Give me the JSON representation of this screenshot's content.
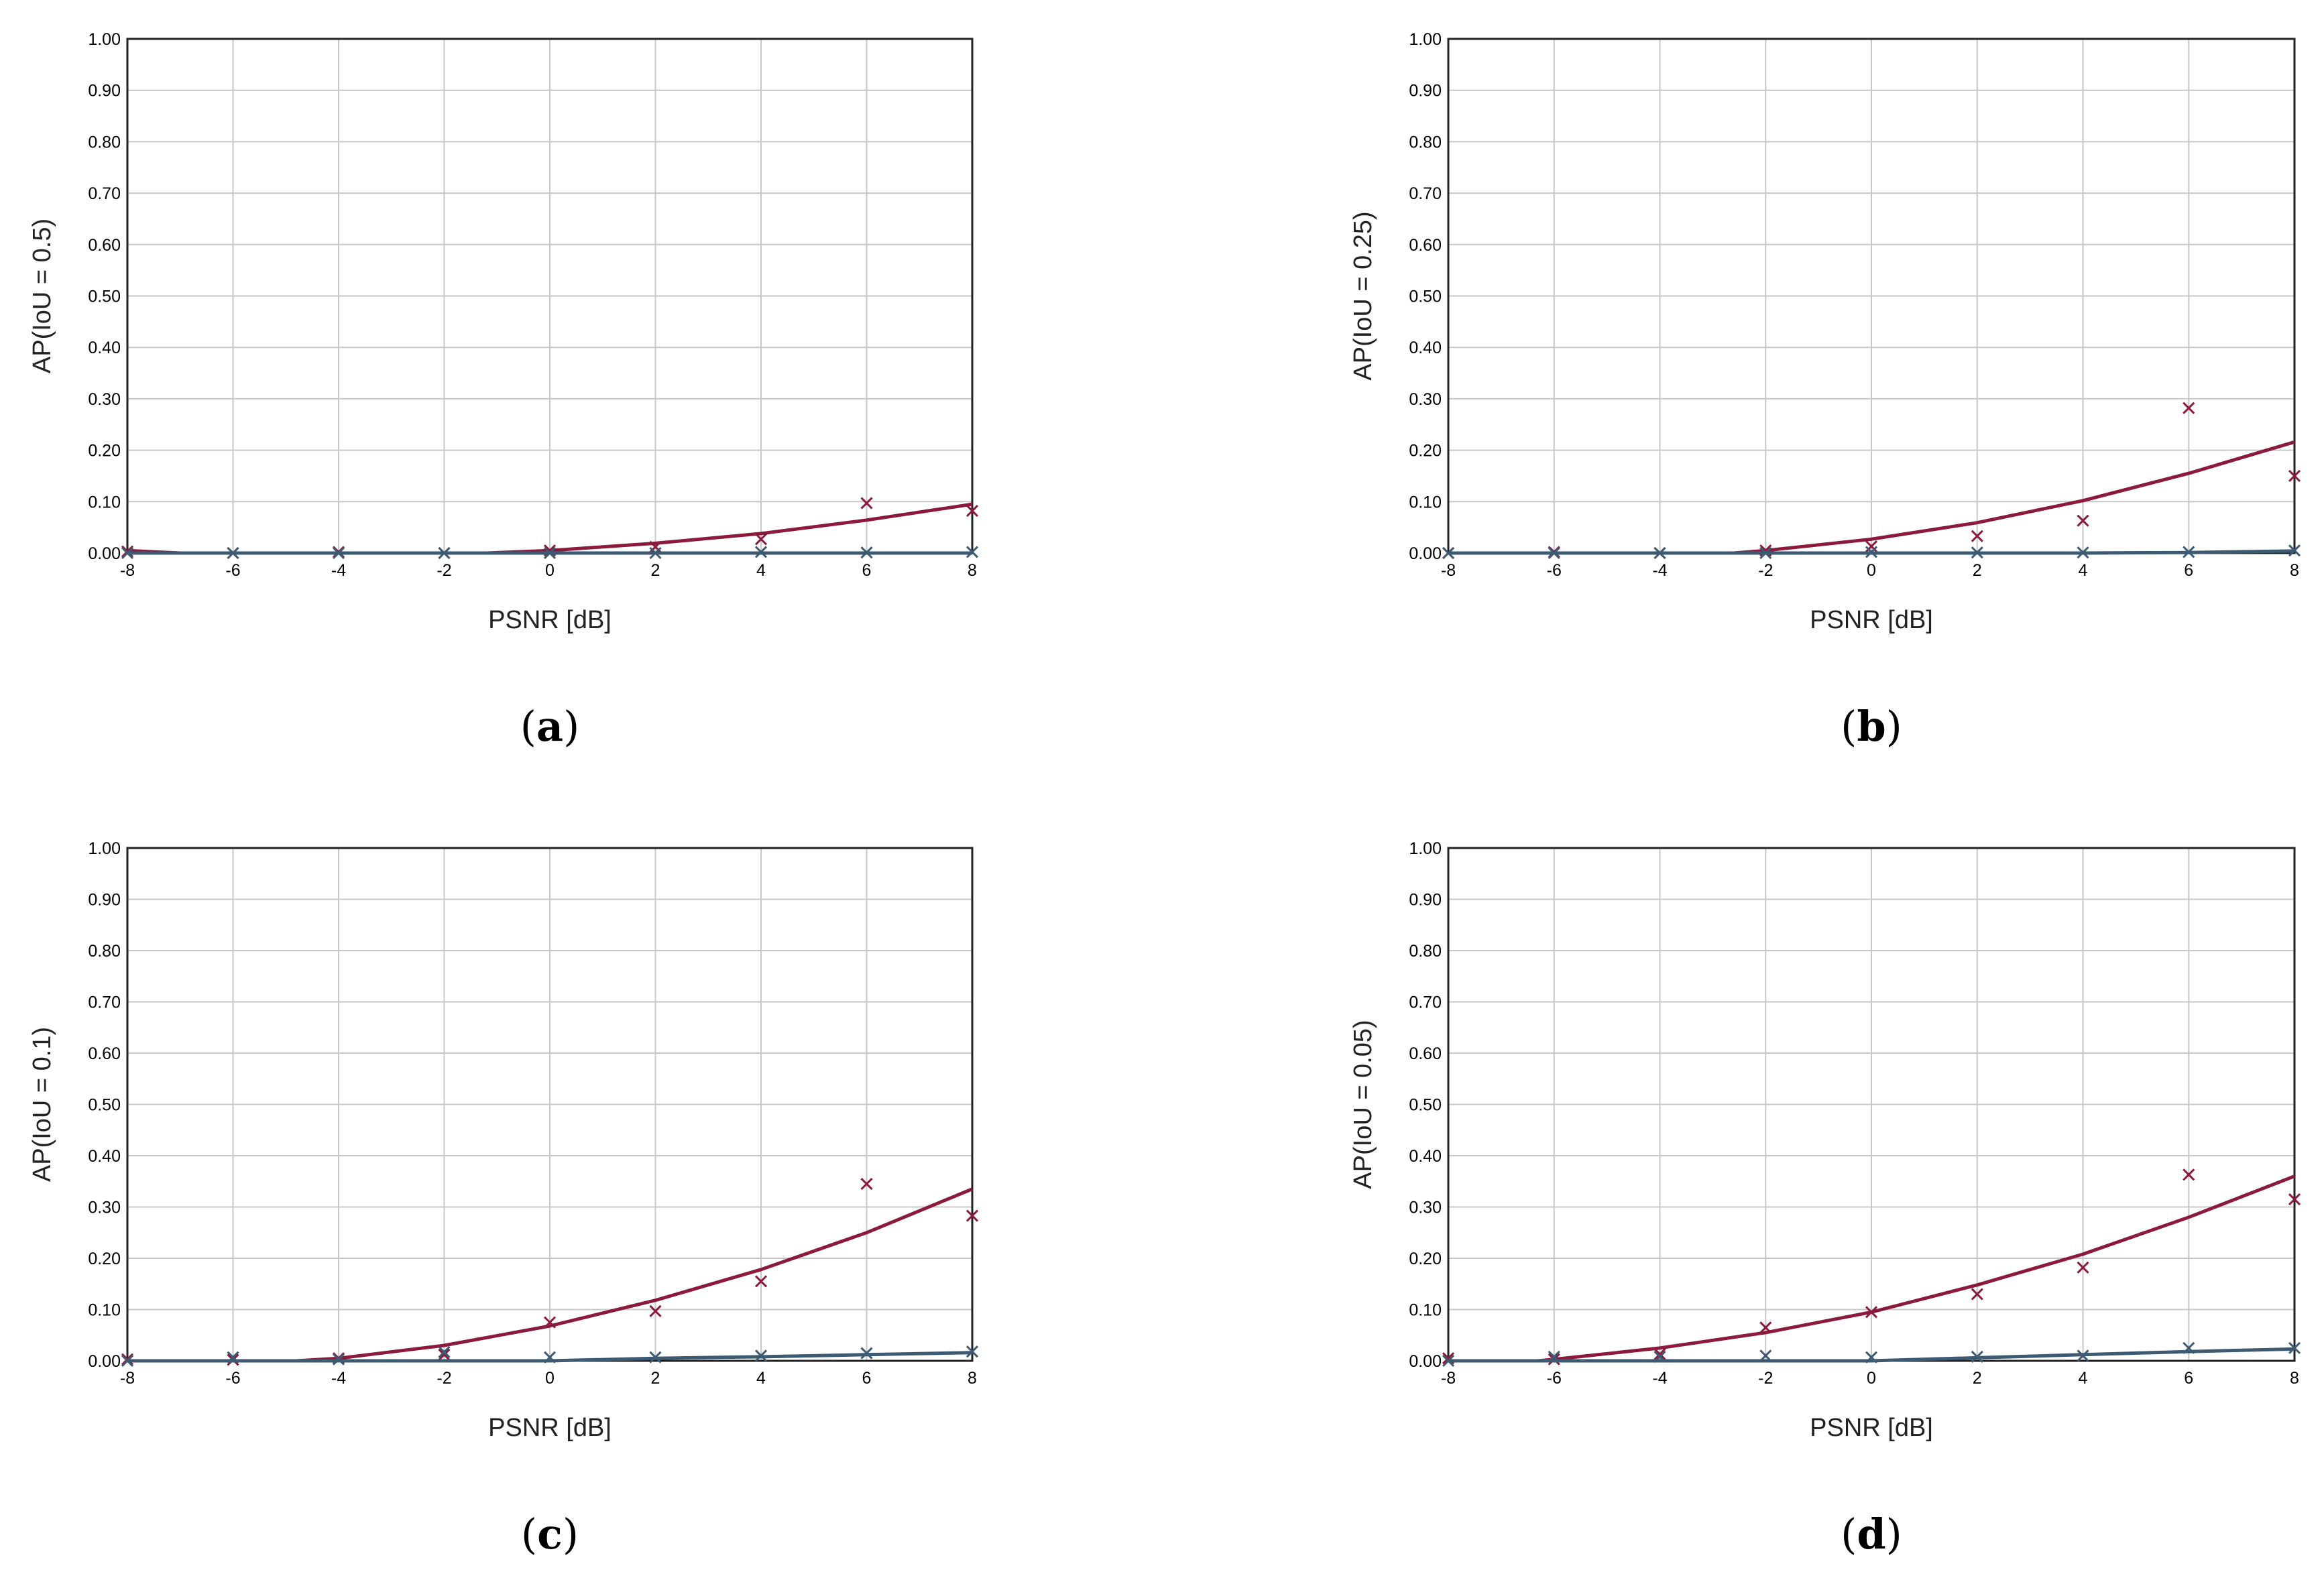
{
  "colors": {
    "series_red": "#8b1a3c",
    "series_blue": "#3d5a73",
    "grid": "#c8c8c8"
  },
  "chart_data": [
    {
      "type": "scatter",
      "panel": "a",
      "xlabel": "PSNR [dB]",
      "ylabel": "AP(IoU = 0.5)",
      "xlim": [
        -8,
        8
      ],
      "ylim": [
        0,
        1
      ],
      "xticks": [
        -8,
        -6,
        -4,
        -2,
        0,
        2,
        4,
        6,
        8
      ],
      "yticks": [
        "0.00",
        "0.10",
        "0.20",
        "0.30",
        "0.40",
        "0.50",
        "0.60",
        "0.70",
        "0.80",
        "0.90",
        "1.00"
      ],
      "grid": true,
      "series": [
        {
          "color": "#8b1a3c",
          "x": [
            -8,
            -6,
            -4,
            -2,
            0,
            2,
            4,
            6,
            8
          ],
          "y": [
            0.003,
            0.0,
            0.002,
            0.0,
            0.005,
            0.012,
            0.027,
            0.097,
            0.082
          ],
          "fit": [
            [
              -8,
              0.005
            ],
            [
              -7,
              0.0
            ],
            [
              -1.2,
              0.0
            ],
            [
              0,
              0.005
            ],
            [
              2,
              0.019
            ],
            [
              4,
              0.038
            ],
            [
              6,
              0.064
            ],
            [
              8,
              0.095
            ]
          ]
        },
        {
          "color": "#3d5a73",
          "x": [
            -8,
            -6,
            -4,
            -2,
            0,
            2,
            4,
            6,
            8
          ],
          "y": [
            0.0,
            0.0,
            0.0,
            0.0,
            0.0,
            0.0,
            0.002,
            0.001,
            0.002
          ],
          "fit": [
            [
              -8,
              0.0
            ],
            [
              8,
              0.0
            ]
          ]
        }
      ]
    },
    {
      "type": "scatter",
      "panel": "b",
      "xlabel": "PSNR [dB]",
      "ylabel": "AP(IoU = 0.25)",
      "xlim": [
        -8,
        8
      ],
      "ylim": [
        0,
        1
      ],
      "xticks": [
        -8,
        -6,
        -4,
        -2,
        0,
        2,
        4,
        6,
        8
      ],
      "yticks": [
        "0.00",
        "0.10",
        "0.20",
        "0.30",
        "0.40",
        "0.50",
        "0.60",
        "0.70",
        "0.80",
        "0.90",
        "1.00"
      ],
      "grid": true,
      "series": [
        {
          "color": "#8b1a3c",
          "x": [
            -8,
            -6,
            -4,
            -2,
            0,
            2,
            4,
            6,
            8
          ],
          "y": [
            0.0,
            0.002,
            0.0,
            0.005,
            0.013,
            0.033,
            0.063,
            0.282,
            0.15
          ],
          "fit": [
            [
              -2.6,
              0.0
            ],
            [
              -2,
              0.005
            ],
            [
              0,
              0.027
            ],
            [
              2,
              0.059
            ],
            [
              4,
              0.102
            ],
            [
              6,
              0.155
            ],
            [
              8,
              0.216
            ]
          ]
        },
        {
          "color": "#3d5a73",
          "x": [
            -8,
            -6,
            -4,
            -2,
            0,
            2,
            4,
            6,
            8
          ],
          "y": [
            0.0,
            0.0,
            0.0,
            0.0,
            0.002,
            0.001,
            0.001,
            0.002,
            0.005
          ],
          "fit": [
            [
              -8,
              0.0
            ],
            [
              4,
              0.0
            ],
            [
              6,
              0.001
            ],
            [
              8,
              0.004
            ]
          ]
        }
      ]
    },
    {
      "type": "scatter",
      "panel": "c",
      "xlabel": "PSNR [dB]",
      "ylabel": "AP(IoU = 0.1)",
      "xlim": [
        -8,
        8
      ],
      "ylim": [
        0,
        1
      ],
      "xticks": [
        -8,
        -6,
        -4,
        -2,
        0,
        2,
        4,
        6,
        8
      ],
      "yticks": [
        "0.00",
        "0.10",
        "0.20",
        "0.30",
        "0.40",
        "0.50",
        "0.60",
        "0.70",
        "0.80",
        "0.90",
        "1.00"
      ],
      "grid": true,
      "series": [
        {
          "color": "#8b1a3c",
          "x": [
            -8,
            -6,
            -4,
            -2,
            0,
            2,
            4,
            6,
            8
          ],
          "y": [
            0.003,
            0.002,
            0.005,
            0.012,
            0.075,
            0.097,
            0.155,
            0.345,
            0.283
          ],
          "fit": [
            [
              -4.8,
              0.0
            ],
            [
              -4,
              0.005
            ],
            [
              -2,
              0.03
            ],
            [
              0,
              0.068
            ],
            [
              2,
              0.118
            ],
            [
              4,
              0.178
            ],
            [
              6,
              0.25
            ],
            [
              8,
              0.335
            ]
          ]
        },
        {
          "color": "#3d5a73",
          "x": [
            -8,
            -6,
            -4,
            -2,
            0,
            2,
            4,
            6,
            8
          ],
          "y": [
            0.0,
            0.007,
            0.003,
            0.017,
            0.007,
            0.007,
            0.01,
            0.015,
            0.018
          ],
          "fit": [
            [
              -8,
              0.0
            ],
            [
              0,
              0.0
            ],
            [
              2,
              0.005
            ],
            [
              4,
              0.008
            ],
            [
              6,
              0.012
            ],
            [
              8,
              0.016
            ]
          ]
        }
      ]
    },
    {
      "type": "scatter",
      "panel": "d",
      "xlabel": "PSNR [dB]",
      "ylabel": "AP(IoU = 0.05)",
      "xlim": [
        -8,
        8
      ],
      "ylim": [
        0,
        1
      ],
      "xticks": [
        -8,
        -6,
        -4,
        -2,
        0,
        2,
        4,
        6,
        8
      ],
      "yticks": [
        "0.00",
        "0.10",
        "0.20",
        "0.30",
        "0.40",
        "0.50",
        "0.60",
        "0.70",
        "0.80",
        "0.90",
        "1.00"
      ],
      "grid": true,
      "series": [
        {
          "color": "#8b1a3c",
          "x": [
            -8,
            -6,
            -4,
            -2,
            0,
            2,
            4,
            6,
            8
          ],
          "y": [
            0.005,
            0.003,
            0.013,
            0.065,
            0.095,
            0.13,
            0.182,
            0.363,
            0.315
          ],
          "fit": [
            [
              -6.3,
              0.0
            ],
            [
              -6,
              0.003
            ],
            [
              -4,
              0.025
            ],
            [
              -2,
              0.055
            ],
            [
              0,
              0.095
            ],
            [
              2,
              0.148
            ],
            [
              4,
              0.208
            ],
            [
              6,
              0.28
            ],
            [
              8,
              0.36
            ]
          ]
        },
        {
          "color": "#3d5a73",
          "x": [
            -8,
            -6,
            -4,
            -2,
            0,
            2,
            4,
            6,
            8
          ],
          "y": [
            0.0,
            0.008,
            0.008,
            0.01,
            0.007,
            0.008,
            0.01,
            0.025,
            0.025
          ],
          "fit": [
            [
              -8,
              0.0
            ],
            [
              0,
              0.0
            ],
            [
              2,
              0.006
            ],
            [
              4,
              0.012
            ],
            [
              6,
              0.018
            ],
            [
              8,
              0.023
            ]
          ]
        }
      ]
    }
  ],
  "captions": [
    {
      "open": "(",
      "letter": "a",
      "close": ")"
    },
    {
      "open": "(",
      "letter": "b",
      "close": ")"
    },
    {
      "open": "(",
      "letter": "c",
      "close": ")"
    },
    {
      "open": "(",
      "letter": "d",
      "close": ")"
    }
  ]
}
